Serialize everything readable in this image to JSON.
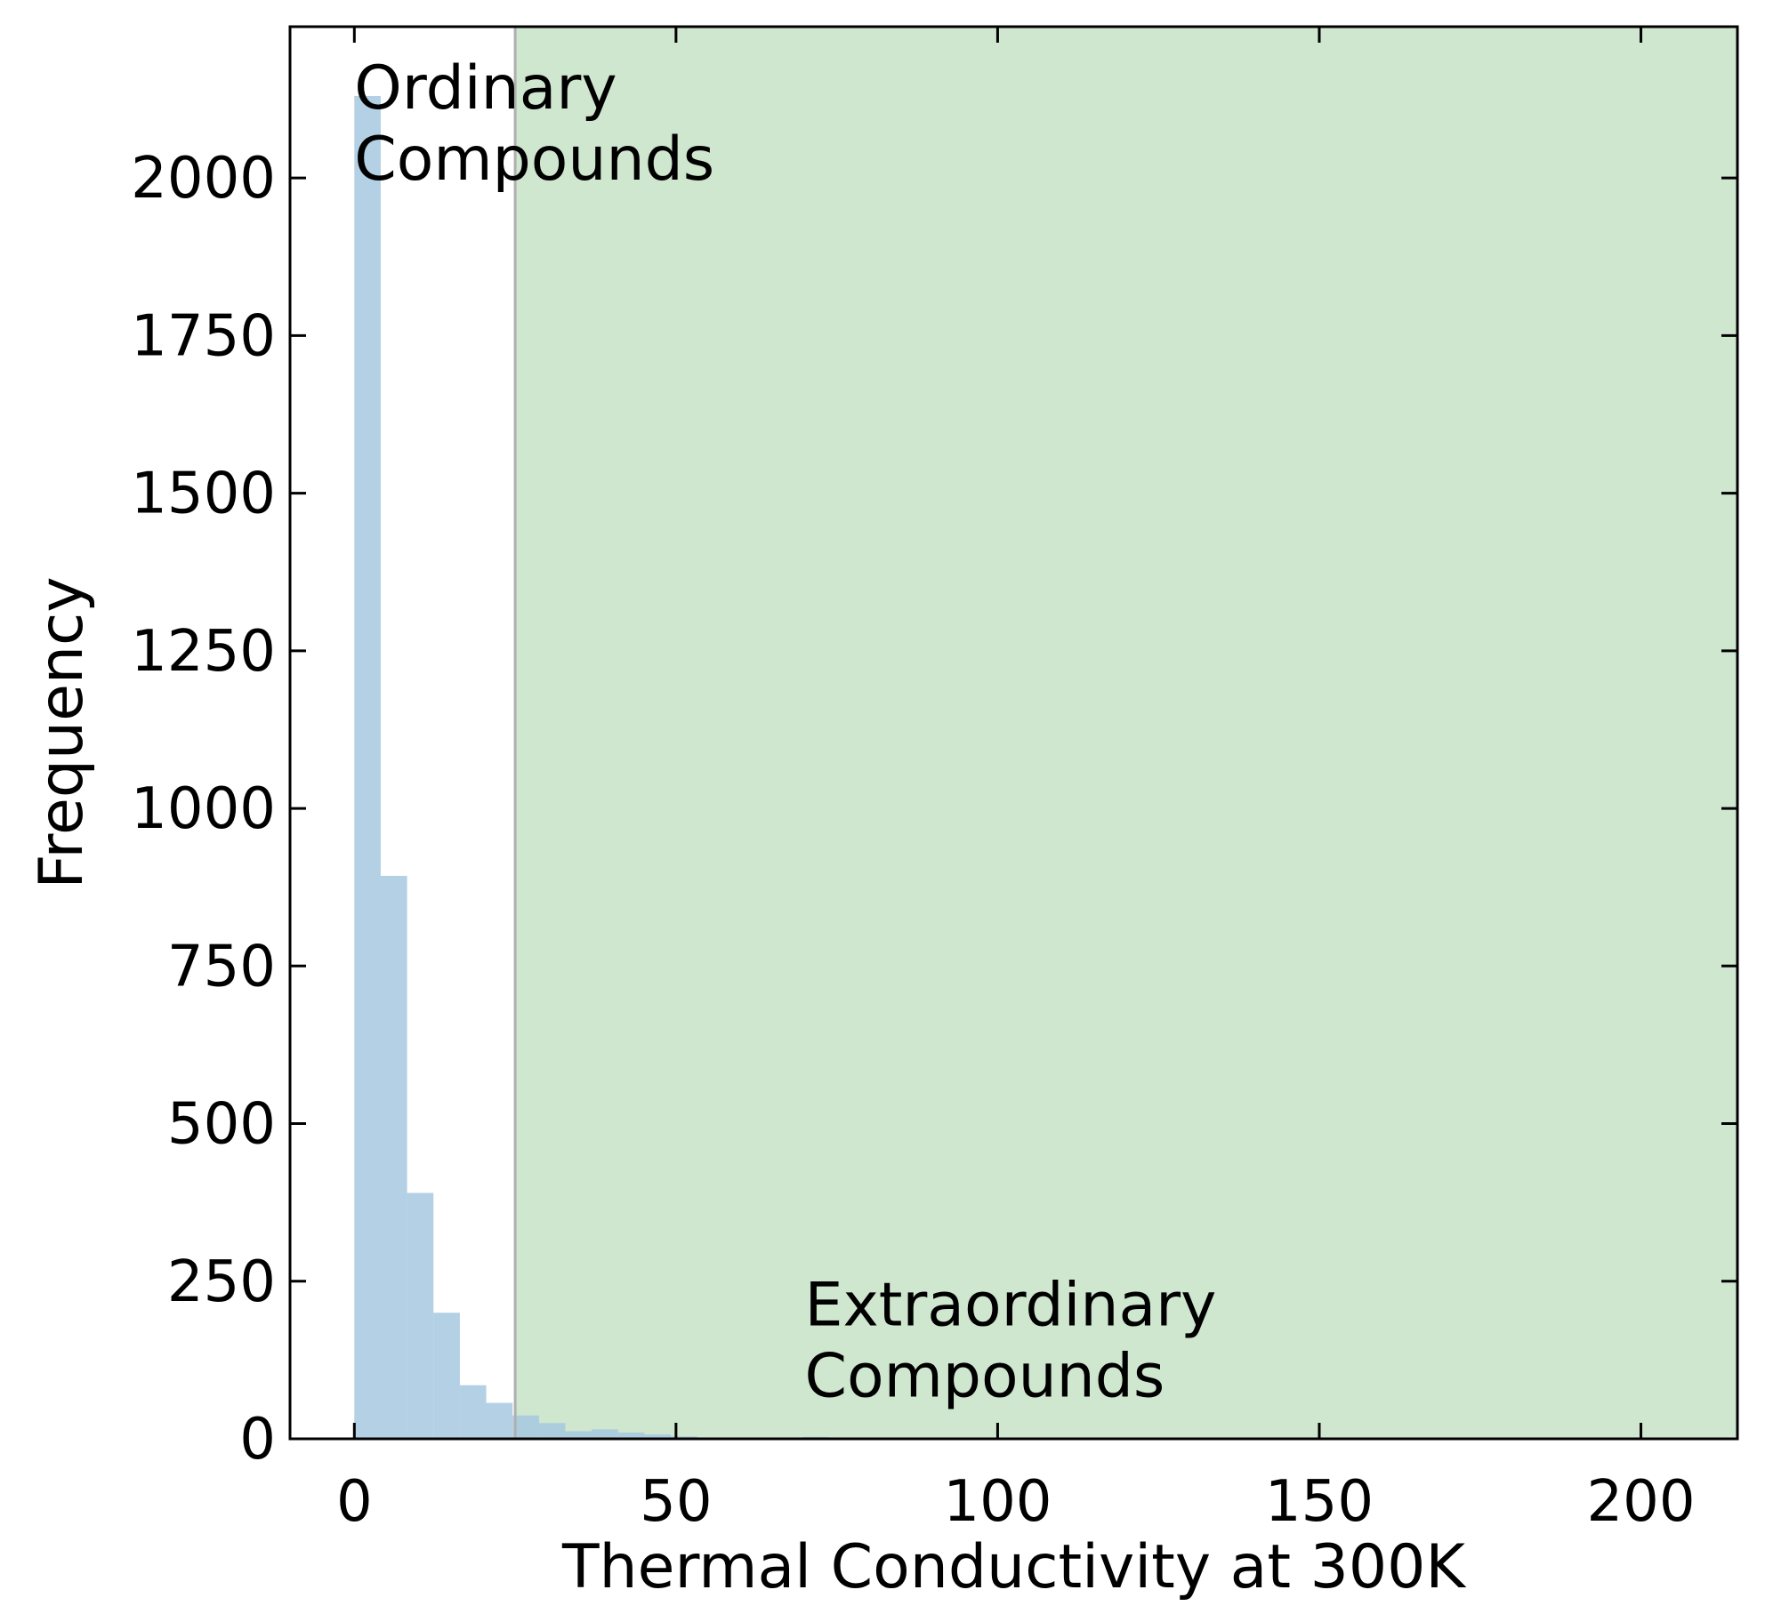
{
  "chart_data": {
    "type": "bar",
    "subtype": "histogram",
    "title": "",
    "xlabel": "Thermal Conductivity at 300K",
    "ylabel": "Frequency",
    "xlim": [
      -10,
      215
    ],
    "ylim": [
      0,
      2240
    ],
    "xticks": [
      0,
      50,
      100,
      150,
      200
    ],
    "yticks": [
      0,
      250,
      500,
      750,
      1000,
      1250,
      1500,
      1750,
      2000
    ],
    "grid": false,
    "tick_direction": "in",
    "bin_width": 4.1,
    "bin_start": 0,
    "values": [
      2130,
      893,
      390,
      200,
      85,
      57,
      37,
      25,
      12,
      15,
      10,
      7,
      4,
      2,
      2,
      2,
      2,
      3,
      2,
      1,
      1,
      1
    ],
    "bar_color": "#a6c8e0",
    "threshold": 25,
    "threshold_line_color": "#b0b0b0",
    "shaded_region": {
      "from": 25,
      "to": 215,
      "color": "#cfe6cf"
    },
    "annotations": [
      {
        "id": "ordinary",
        "lines": [
          "Ordinary",
          "Compounds"
        ],
        "x": 0,
        "y": 2110
      },
      {
        "id": "extraordinary",
        "lines": [
          "Extraordinary",
          "Compounds"
        ],
        "x": 70,
        "y": 180
      }
    ]
  }
}
